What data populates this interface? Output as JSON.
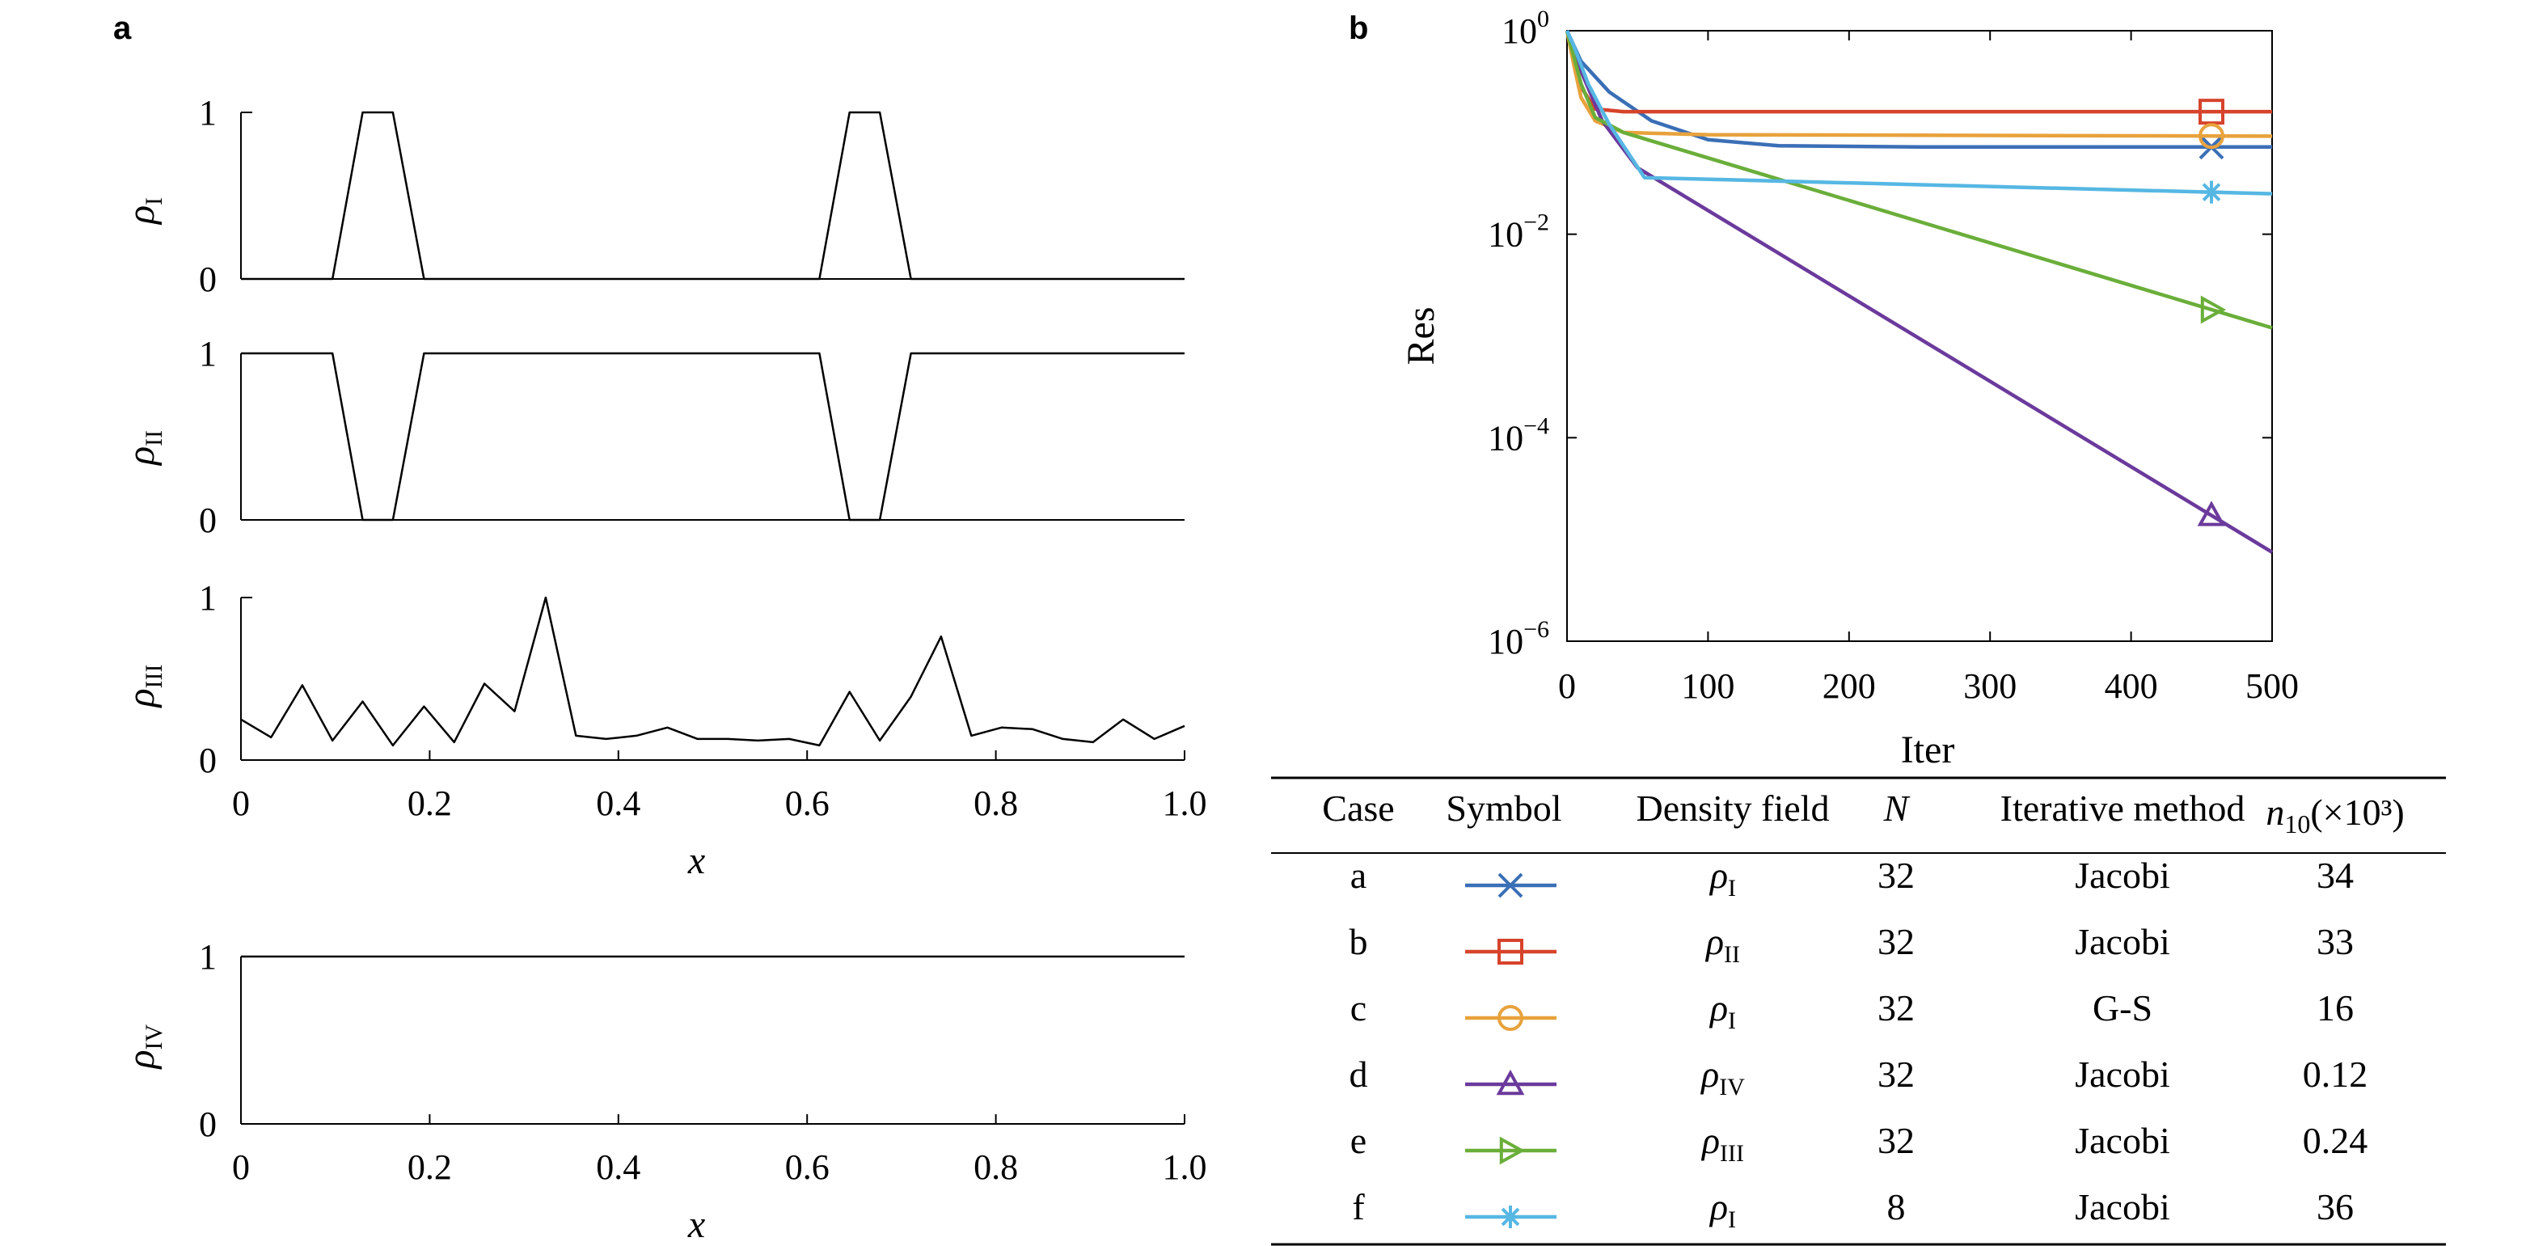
{
  "figure": {
    "panel_a_label": "a",
    "panel_b_label": "b"
  },
  "chart_data": [
    {
      "id": "rho-I",
      "type": "line",
      "ylabel_symbol": "ρ",
      "ylabel_subscript": "I",
      "xlim": [
        0,
        1
      ],
      "ylim": [
        0,
        1
      ],
      "yticks": [
        "0",
        "1"
      ],
      "xticks": [],
      "points": [
        [
          0,
          0
        ],
        [
          0.097,
          0
        ],
        [
          0.129,
          1
        ],
        [
          0.161,
          1
        ],
        [
          0.194,
          0
        ],
        [
          0.613,
          0
        ],
        [
          0.645,
          1
        ],
        [
          0.677,
          1
        ],
        [
          0.71,
          0
        ],
        [
          1,
          0
        ]
      ]
    },
    {
      "id": "rho-II",
      "type": "line",
      "ylabel_symbol": "ρ",
      "ylabel_subscript": "II",
      "xlim": [
        0,
        1
      ],
      "ylim": [
        0,
        1
      ],
      "yticks": [
        "0",
        "1"
      ],
      "xticks": [],
      "points": [
        [
          0,
          1
        ],
        [
          0.097,
          1
        ],
        [
          0.129,
          0
        ],
        [
          0.161,
          0
        ],
        [
          0.194,
          1
        ],
        [
          0.613,
          1
        ],
        [
          0.645,
          0
        ],
        [
          0.677,
          0
        ],
        [
          0.71,
          1
        ],
        [
          1,
          1
        ]
      ]
    },
    {
      "id": "rho-III",
      "type": "line",
      "ylabel_symbol": "ρ",
      "ylabel_subscript": "III",
      "xlim": [
        0,
        1
      ],
      "ylim": [
        0,
        1
      ],
      "yticks": [
        "0",
        "1"
      ],
      "xticks": [
        "0",
        "0.2",
        "0.4",
        "0.6",
        "0.8",
        "1.0"
      ],
      "xlabel": "x",
      "points": [
        [
          0,
          0.25
        ],
        [
          0.032,
          0.14
        ],
        [
          0.065,
          0.46
        ],
        [
          0.097,
          0.12
        ],
        [
          0.129,
          0.36
        ],
        [
          0.161,
          0.09
        ],
        [
          0.194,
          0.33
        ],
        [
          0.226,
          0.11
        ],
        [
          0.258,
          0.47
        ],
        [
          0.29,
          0.3
        ],
        [
          0.323,
          1.0
        ],
        [
          0.355,
          0.15
        ],
        [
          0.387,
          0.13
        ],
        [
          0.419,
          0.15
        ],
        [
          0.452,
          0.2
        ],
        [
          0.484,
          0.13
        ],
        [
          0.516,
          0.13
        ],
        [
          0.548,
          0.12
        ],
        [
          0.581,
          0.13
        ],
        [
          0.613,
          0.09
        ],
        [
          0.645,
          0.42
        ],
        [
          0.677,
          0.12
        ],
        [
          0.71,
          0.39
        ],
        [
          0.742,
          0.76
        ],
        [
          0.774,
          0.15
        ],
        [
          0.806,
          0.2
        ],
        [
          0.839,
          0.19
        ],
        [
          0.871,
          0.13
        ],
        [
          0.903,
          0.11
        ],
        [
          0.935,
          0.25
        ],
        [
          0.968,
          0.13
        ],
        [
          1,
          0.21
        ]
      ]
    },
    {
      "id": "rho-IV",
      "type": "line",
      "ylabel_symbol": "ρ",
      "ylabel_subscript": "IV",
      "xlim": [
        0,
        1
      ],
      "ylim": [
        0,
        1
      ],
      "yticks": [
        "0",
        "1"
      ],
      "xticks": [
        "0",
        "0.2",
        "0.4",
        "0.6",
        "0.8",
        "1.0"
      ],
      "xlabel": "x",
      "points": [
        [
          0,
          1
        ],
        [
          1,
          1
        ]
      ]
    },
    {
      "id": "residual",
      "type": "line",
      "yscale": "log",
      "xlabel": "Iter",
      "ylabel": "Res",
      "xlim": [
        0,
        500
      ],
      "ylim": [
        1e-06,
        1
      ],
      "xticks": [
        "0",
        "100",
        "200",
        "300",
        "400",
        "500"
      ],
      "yticks": [
        {
          "value": 1,
          "base": "10",
          "exp": "0"
        },
        {
          "value": 0.01,
          "base": "10",
          "exp": "−2"
        },
        {
          "value": 0.0001,
          "base": "10",
          "exp": "−4"
        },
        {
          "value": 1e-06,
          "base": "10",
          "exp": "−6"
        }
      ],
      "series": [
        {
          "case": "a",
          "color": "#3A6FB6",
          "marker": "x",
          "marker_x": 457,
          "points": [
            [
              0,
              1
            ],
            [
              10,
              0.5
            ],
            [
              30,
              0.25
            ],
            [
              60,
              0.13
            ],
            [
              100,
              0.085
            ],
            [
              150,
              0.074
            ],
            [
              250,
              0.072
            ],
            [
              500,
              0.072
            ]
          ]
        },
        {
          "case": "b",
          "color": "#D6432B",
          "marker": "square",
          "marker_x": 457,
          "points": [
            [
              0,
              1
            ],
            [
              5,
              0.5
            ],
            [
              10,
              0.28
            ],
            [
              20,
              0.17
            ],
            [
              40,
              0.16
            ],
            [
              500,
              0.16
            ]
          ]
        },
        {
          "case": "c",
          "color": "#E8A23C",
          "marker": "circle",
          "marker_x": 457,
          "points": [
            [
              0,
              1
            ],
            [
              5,
              0.45
            ],
            [
              10,
              0.22
            ],
            [
              20,
              0.13
            ],
            [
              40,
              0.1
            ],
            [
              100,
              0.095
            ],
            [
              500,
              0.092
            ]
          ]
        },
        {
          "case": "d",
          "color": "#6B3A9C",
          "marker": "triangle-up",
          "marker_x": 457,
          "points": [
            [
              0,
              1
            ],
            [
              10,
              0.4
            ],
            [
              25,
              0.13
            ],
            [
              50,
              0.045
            ],
            [
              500,
              7.5e-06
            ]
          ]
        },
        {
          "case": "e",
          "color": "#6AAE3A",
          "marker": "triangle-right",
          "marker_x": 457,
          "points": [
            [
              0,
              1
            ],
            [
              10,
              0.3
            ],
            [
              20,
              0.14
            ],
            [
              40,
              0.1
            ],
            [
              500,
              0.0012
            ]
          ]
        },
        {
          "case": "f",
          "color": "#56B7E3",
          "marker": "asterisk",
          "marker_x": 457,
          "points": [
            [
              0,
              1
            ],
            [
              5,
              0.7
            ],
            [
              15,
              0.3
            ],
            [
              30,
              0.12
            ],
            [
              55,
              0.036
            ],
            [
              500,
              0.025
            ]
          ]
        }
      ]
    }
  ],
  "table": {
    "headers": {
      "case": "Case",
      "symbol": "Symbol",
      "density": "Density field",
      "n": "N",
      "method": "Iterative method",
      "n10_base": "n",
      "n10_sub": "10",
      "n10_unit": "(×10³)"
    },
    "rows": [
      {
        "case": "a",
        "color": "#3A6FB6",
        "marker": "x",
        "density_symbol": "ρ",
        "density_sub": "I",
        "n": "32",
        "method": "Jacobi",
        "n10": "34"
      },
      {
        "case": "b",
        "color": "#D6432B",
        "marker": "square",
        "density_symbol": "ρ",
        "density_sub": "II",
        "n": "32",
        "method": "Jacobi",
        "n10": "33"
      },
      {
        "case": "c",
        "color": "#E8A23C",
        "marker": "circle",
        "density_symbol": "ρ",
        "density_sub": "I",
        "n": "32",
        "method": "G-S",
        "n10": "16"
      },
      {
        "case": "d",
        "color": "#6B3A9C",
        "marker": "triangle-up",
        "density_symbol": "ρ",
        "density_sub": "IV",
        "n": "32",
        "method": "Jacobi",
        "n10": "0.12"
      },
      {
        "case": "e",
        "color": "#6AAE3A",
        "marker": "triangle-right",
        "density_symbol": "ρ",
        "density_sub": "III",
        "n": "32",
        "method": "Jacobi",
        "n10": "0.24"
      },
      {
        "case": "f",
        "color": "#56B7E3",
        "marker": "asterisk",
        "density_symbol": "ρ",
        "density_sub": "I",
        "n": "8",
        "method": "Jacobi",
        "n10": "36"
      }
    ]
  }
}
